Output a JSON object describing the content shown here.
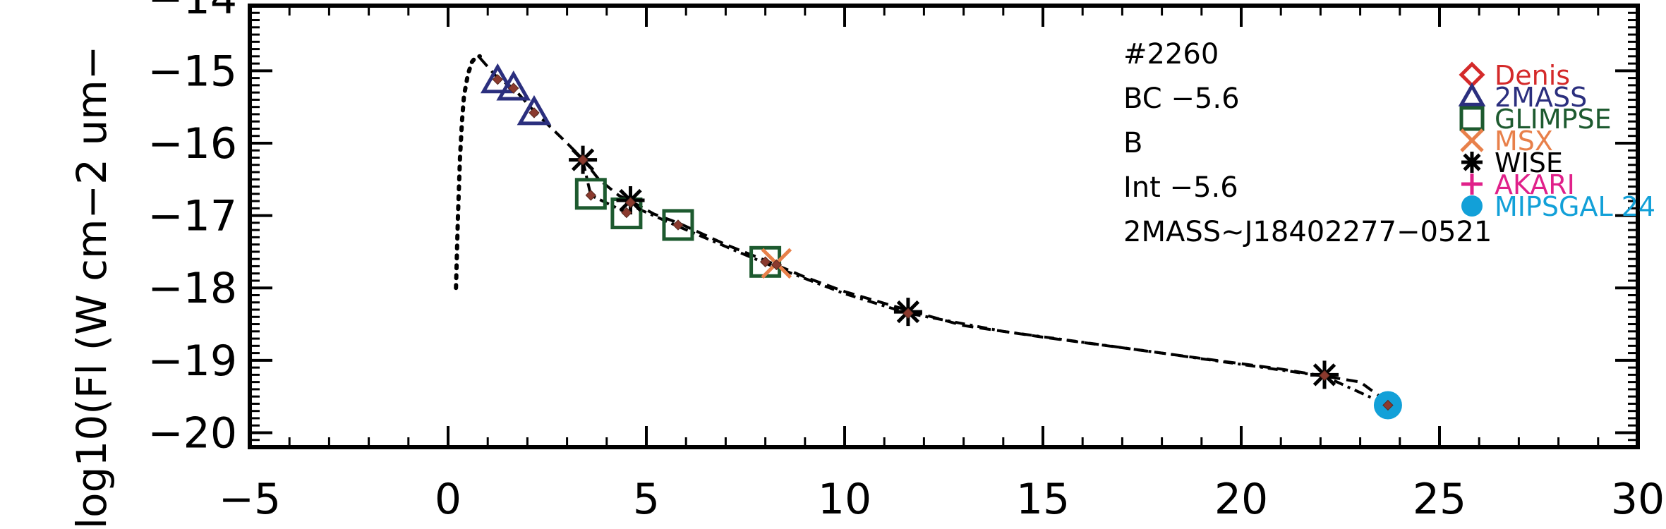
{
  "chart_data": {
    "type": "scatter",
    "title": "",
    "xlabel": "",
    "ylabel": "log10(Fl (W cm−2 um−",
    "xlim": [
      -5,
      30
    ],
    "ylim": [
      -20.2,
      -14.1
    ],
    "x_ticks": [
      -5,
      0,
      5,
      10,
      15,
      20,
      25,
      30
    ],
    "x_tick_labels": [
      "−5",
      "0",
      "5",
      "10",
      "15",
      "20",
      "25",
      "30"
    ],
    "y_ticks": [
      -20,
      -19,
      -18,
      -17,
      -16,
      -15,
      -14
    ],
    "y_tick_labels": [
      "−20",
      "−19",
      "−18",
      "−17",
      "−16",
      "−15",
      "−14"
    ],
    "annotations": [
      "#2260",
      "BC −5.6",
      "B",
      "Int −5.6",
      "2MASS~J18402277−0521"
    ],
    "series": [
      {
        "name": "Denis",
        "marker": "diamond",
        "color": "#d42a2a",
        "x": [],
        "y": []
      },
      {
        "name": "2MASS",
        "marker": "triangle",
        "color": "#2b2f7e",
        "x": [
          1.25,
          1.65,
          2.17
        ],
        "y": [
          -15.14,
          -15.24,
          -15.58
        ]
      },
      {
        "name": "GLIMPSE",
        "marker": "square",
        "color": "#1d5a2f",
        "x": [
          3.6,
          4.5,
          5.8,
          8.0
        ],
        "y": [
          -16.7,
          -16.97,
          -17.13,
          -17.64
        ]
      },
      {
        "name": "MSX",
        "marker": "x",
        "color": "#e8804a",
        "x": [
          8.28
        ],
        "y": [
          -17.66
        ]
      },
      {
        "name": "WISE",
        "marker": "asterisk",
        "color": "#000000",
        "x": [
          3.4,
          4.6,
          11.6,
          22.1
        ],
        "y": [
          -16.23,
          -16.79,
          -18.33,
          -19.2
        ]
      },
      {
        "name": "AKARI",
        "marker": "plus",
        "color": "#e0218a",
        "x": [],
        "y": []
      },
      {
        "name": "MIPSGAL 24",
        "marker": "circle",
        "color": "#12a0d8",
        "x": [
          23.7
        ],
        "y": [
          -19.62
        ]
      }
    ],
    "model_points": {
      "color": "#8b3a2e",
      "x": [
        1.25,
        1.65,
        2.17,
        3.4,
        3.6,
        4.5,
        4.6,
        5.8,
        8.0,
        8.28,
        11.6,
        22.1,
        23.7
      ],
      "y": [
        -15.12,
        -15.24,
        -15.58,
        -16.23,
        -16.72,
        -16.96,
        -16.82,
        -17.13,
        -17.64,
        -17.68,
        -18.35,
        -19.21,
        -19.62
      ]
    },
    "curves": [
      {
        "name": "",
        "style": "dotted",
        "color": "#000000",
        "x": [
          0.2,
          0.25,
          0.3,
          0.35,
          0.4,
          0.5,
          0.6,
          0.7,
          0.8
        ],
        "y": [
          -18.0,
          -17.0,
          -16.2,
          -15.7,
          -15.35,
          -15.05,
          -14.88,
          -14.81,
          -14.8
        ]
      },
      {
        "name": "",
        "style": "dashed",
        "color": "#000000",
        "x": [
          0.8,
          1.25,
          1.65,
          2.17,
          3.0,
          3.4,
          3.8,
          4.3,
          4.6,
          5.2,
          5.8,
          7.0,
          8.0,
          9.0,
          10.0,
          11.6,
          13.0,
          15.0,
          18.0,
          21.0,
          23.0,
          23.7
        ],
        "y": [
          -14.82,
          -15.1,
          -15.24,
          -15.56,
          -16.0,
          -16.22,
          -16.5,
          -16.72,
          -16.8,
          -16.98,
          -17.1,
          -17.4,
          -17.62,
          -17.85,
          -18.05,
          -18.31,
          -18.52,
          -18.68,
          -18.9,
          -19.12,
          -19.3,
          -19.58
        ]
      },
      {
        "name": "",
        "style": "dashdot",
        "color": "#000000",
        "x": [
          3.4,
          3.6,
          4.5,
          4.6,
          5.8,
          8.0,
          10.0,
          11.6,
          14.0,
          18.0,
          22.1,
          23.7
        ],
        "y": [
          -16.25,
          -16.72,
          -16.96,
          -16.86,
          -17.15,
          -17.66,
          -18.08,
          -18.35,
          -18.6,
          -18.9,
          -19.22,
          -19.62
        ]
      }
    ],
    "legend_placement": "top-right",
    "grid": false
  }
}
